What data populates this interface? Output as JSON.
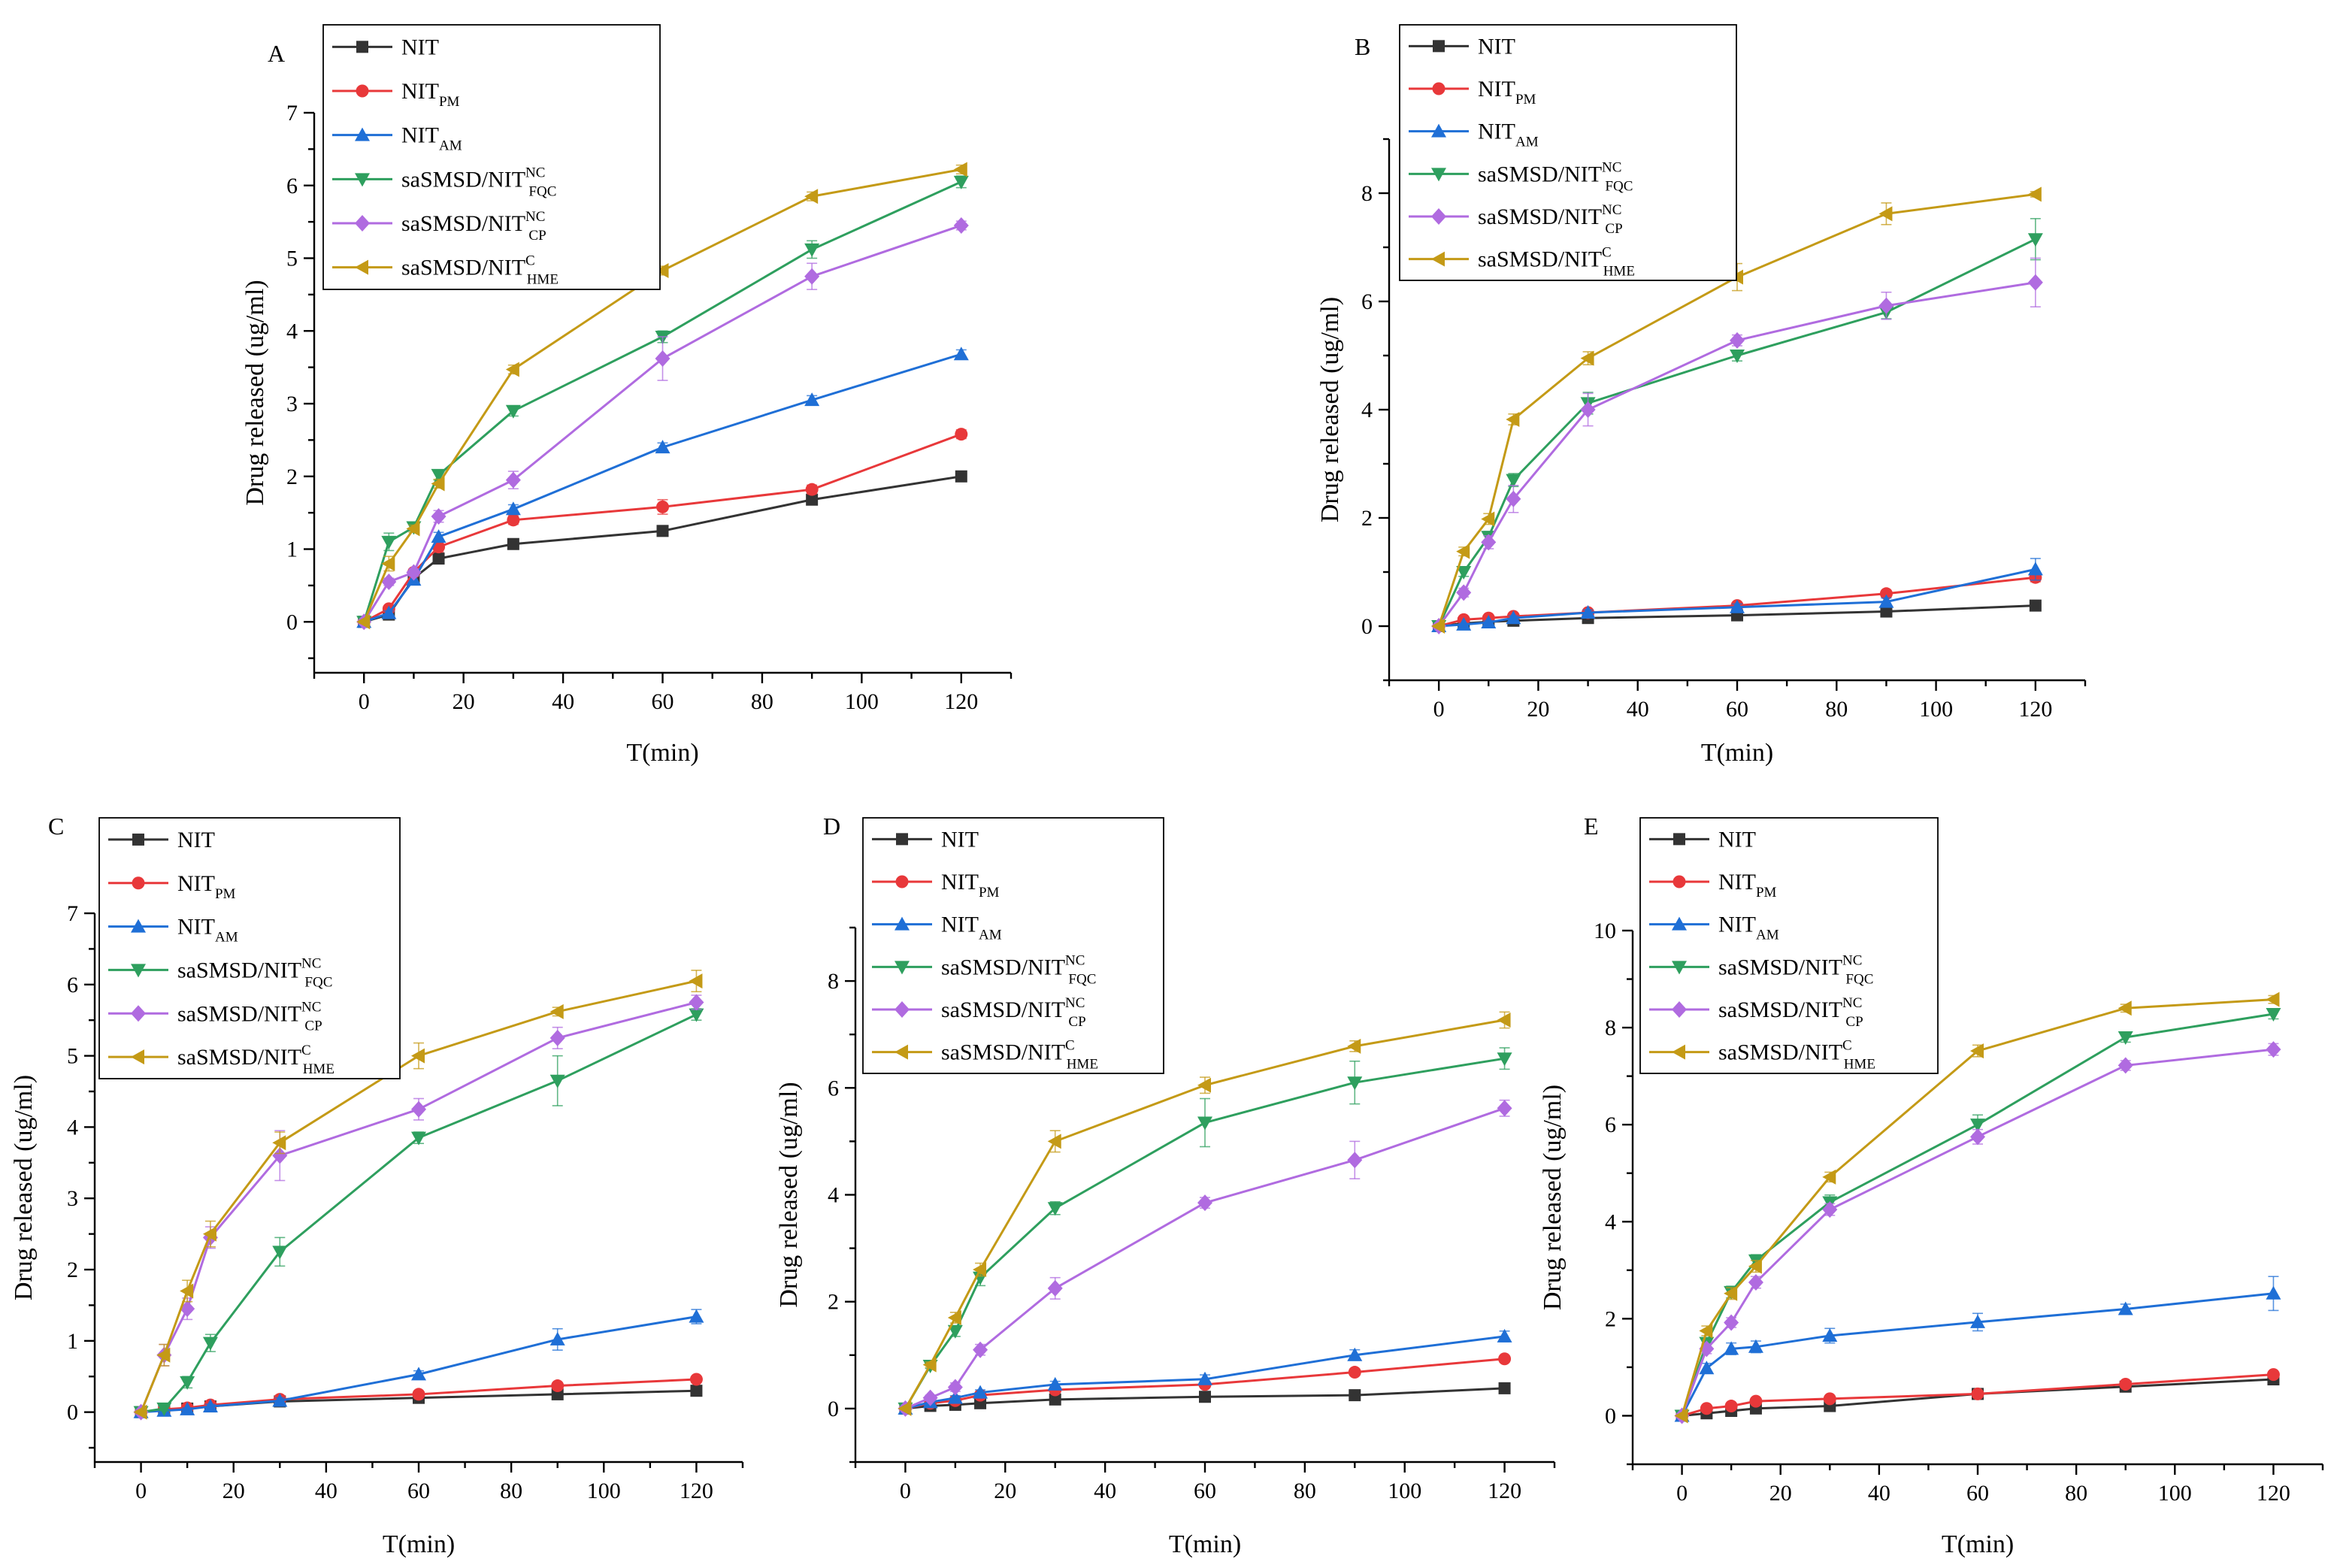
{
  "figure": {
    "title": ""
  },
  "series_style": [
    {
      "name": "NIT",
      "color": "#333333",
      "marker": "square"
    },
    {
      "name": "NIT_PM",
      "color": "#e8383a",
      "marker": "circle"
    },
    {
      "name": "NIT_AM",
      "color": "#1f6fd6",
      "marker": "triangle-up"
    },
    {
      "name": "saSMSD/NIT^NC_FQC",
      "color": "#2e9f5e",
      "marker": "triangle-down"
    },
    {
      "name": "saSMSD/NIT^NC_CP",
      "color": "#b06be0",
      "marker": "diamond"
    },
    {
      "name": "saSMSD/NIT^C_HME",
      "color": "#c49a16",
      "marker": "triangle-left"
    }
  ],
  "legend_entries": [
    {
      "base": "NIT",
      "sup": "",
      "sub": ""
    },
    {
      "base": "NIT",
      "sup": "",
      "sub": "PM"
    },
    {
      "base": "NIT",
      "sup": "",
      "sub": "AM"
    },
    {
      "base": "saSMSD/NIT",
      "sup": "NC",
      "sub": "FQC"
    },
    {
      "base": "saSMSD/NIT",
      "sup": "NC",
      "sub": "CP"
    },
    {
      "base": "saSMSD/NIT",
      "sup": "C",
      "sub": "HME"
    }
  ],
  "chart_data": [
    {
      "panel": "A",
      "type": "line",
      "xlabel": "T(min)",
      "ylabel": "Drug released (ug/ml)",
      "xlim": [
        -10,
        130
      ],
      "ylim": [
        -0.7,
        7
      ],
      "xticks": [
        0,
        20,
        40,
        60,
        80,
        100,
        120
      ],
      "yticks": [
        0,
        1,
        2,
        3,
        4,
        5,
        6,
        7
      ],
      "x": [
        0,
        5,
        10,
        15,
        30,
        60,
        90,
        120
      ],
      "series": [
        {
          "name": "NIT",
          "values": [
            0,
            0.1,
            0.6,
            0.87,
            1.07,
            1.25,
            1.68,
            2.0
          ],
          "err": [
            0.02,
            0.02,
            0.04,
            0.05,
            0.04,
            0.05,
            0.05,
            0.05
          ]
        },
        {
          "name": "NIT_PM",
          "values": [
            0,
            0.18,
            0.68,
            1.03,
            1.4,
            1.58,
            1.82,
            2.58
          ],
          "err": [
            0.02,
            0.03,
            0.05,
            0.07,
            0.06,
            0.1,
            0.06,
            0.06
          ]
        },
        {
          "name": "NIT_AM",
          "values": [
            0,
            0.12,
            0.58,
            1.17,
            1.55,
            2.4,
            3.05,
            3.68
          ],
          "err": [
            0.02,
            0.03,
            0.05,
            0.06,
            0.06,
            0.06,
            0.06,
            0.06
          ]
        },
        {
          "name": "saSMSD/NIT^NC_FQC",
          "values": [
            0,
            1.1,
            1.3,
            2.02,
            2.9,
            3.92,
            5.12,
            6.05
          ],
          "err": [
            0.02,
            0.12,
            0.05,
            0.07,
            0.07,
            0.08,
            0.12,
            0.08
          ]
        },
        {
          "name": "saSMSD/NIT^NC_CP",
          "values": [
            0,
            0.55,
            0.68,
            1.45,
            1.95,
            3.62,
            4.75,
            5.45
          ],
          "err": [
            0.02,
            0.05,
            0.05,
            0.08,
            0.12,
            0.3,
            0.18,
            0.06
          ]
        },
        {
          "name": "saSMSD/NIT^C_HME",
          "values": [
            0,
            0.8,
            1.28,
            1.9,
            3.47,
            4.83,
            5.85,
            6.22
          ],
          "err": [
            0.02,
            0.1,
            0.05,
            0.06,
            0.06,
            0.06,
            0.06,
            0.06
          ]
        }
      ]
    },
    {
      "panel": "B",
      "type": "line",
      "xlabel": "T(min)",
      "ylabel": "Drug released (ug/ml)",
      "xlim": [
        -10,
        130
      ],
      "ylim": [
        -1,
        9
      ],
      "xticks": [
        0,
        20,
        40,
        60,
        80,
        100,
        120
      ],
      "yticks": [
        0,
        2,
        4,
        6,
        8
      ],
      "x": [
        0,
        5,
        10,
        15,
        30,
        60,
        90,
        120
      ],
      "series": [
        {
          "name": "NIT",
          "values": [
            0,
            0.05,
            0.08,
            0.1,
            0.15,
            0.2,
            0.27,
            0.38
          ],
          "err": [
            0.02,
            0.02,
            0.02,
            0.02,
            0.02,
            0.03,
            0.03,
            0.03
          ]
        },
        {
          "name": "NIT_PM",
          "values": [
            0,
            0.12,
            0.15,
            0.18,
            0.25,
            0.38,
            0.6,
            0.9
          ],
          "err": [
            0.02,
            0.03,
            0.03,
            0.03,
            0.04,
            0.04,
            0.06,
            0.08
          ]
        },
        {
          "name": "NIT_AM",
          "values": [
            0,
            0.03,
            0.07,
            0.15,
            0.25,
            0.35,
            0.45,
            1.05
          ],
          "err": [
            0.02,
            0.02,
            0.03,
            0.04,
            0.05,
            0.06,
            0.07,
            0.2
          ]
        },
        {
          "name": "saSMSD/NIT^NC_FQC",
          "values": [
            0,
            1.0,
            1.65,
            2.7,
            4.12,
            5.0,
            5.8,
            7.15
          ],
          "err": [
            0.02,
            0.08,
            0.1,
            0.12,
            0.2,
            0.1,
            0.12,
            0.38
          ]
        },
        {
          "name": "saSMSD/NIT^NC_CP",
          "values": [
            0,
            0.62,
            1.55,
            2.35,
            4.0,
            5.28,
            5.92,
            6.35
          ],
          "err": [
            0.02,
            0.08,
            0.12,
            0.25,
            0.3,
            0.1,
            0.25,
            0.45
          ]
        },
        {
          "name": "saSMSD/NIT^C_HME",
          "values": [
            0,
            1.38,
            1.98,
            3.82,
            4.95,
            6.45,
            7.62,
            7.98
          ],
          "err": [
            0.02,
            0.08,
            0.1,
            0.1,
            0.12,
            0.25,
            0.2,
            0.05
          ]
        }
      ]
    },
    {
      "panel": "C",
      "type": "line",
      "xlabel": "T(min)",
      "ylabel": "Drug released (ug/ml)",
      "xlim": [
        -10,
        130
      ],
      "ylim": [
        -0.7,
        7
      ],
      "xticks": [
        0,
        20,
        40,
        60,
        80,
        100,
        120
      ],
      "yticks": [
        0,
        1,
        2,
        3,
        4,
        5,
        6,
        7
      ],
      "x": [
        0,
        5,
        10,
        15,
        30,
        60,
        90,
        120
      ],
      "series": [
        {
          "name": "NIT",
          "values": [
            0,
            0.03,
            0.05,
            0.08,
            0.15,
            0.2,
            0.25,
            0.3
          ],
          "err": [
            0.02,
            0.02,
            0.02,
            0.02,
            0.02,
            0.02,
            0.02,
            0.03
          ]
        },
        {
          "name": "NIT_PM",
          "values": [
            0,
            0.04,
            0.06,
            0.1,
            0.18,
            0.25,
            0.37,
            0.46
          ],
          "err": [
            0.02,
            0.02,
            0.02,
            0.02,
            0.03,
            0.03,
            0.04,
            0.04
          ]
        },
        {
          "name": "NIT_AM",
          "values": [
            0,
            0.02,
            0.04,
            0.08,
            0.16,
            0.53,
            1.02,
            1.34
          ],
          "err": [
            0.02,
            0.02,
            0.02,
            0.03,
            0.04,
            0.05,
            0.15,
            0.1
          ]
        },
        {
          "name": "saSMSD/NIT^NC_FQC",
          "values": [
            0,
            0.05,
            0.42,
            0.97,
            2.25,
            3.85,
            4.65,
            5.58
          ],
          "err": [
            0.02,
            0.03,
            0.08,
            0.12,
            0.2,
            0.08,
            0.35,
            0.08
          ]
        },
        {
          "name": "saSMSD/NIT^NC_CP",
          "values": [
            0,
            0.8,
            1.45,
            2.45,
            3.6,
            4.25,
            5.25,
            5.75
          ],
          "err": [
            0.02,
            0.15,
            0.15,
            0.15,
            0.35,
            0.15,
            0.15,
            0.1
          ]
        },
        {
          "name": "saSMSD/NIT^C_HME",
          "values": [
            0,
            0.8,
            1.7,
            2.5,
            3.78,
            5.0,
            5.62,
            6.05
          ],
          "err": [
            0.02,
            0.15,
            0.15,
            0.18,
            0.15,
            0.18,
            0.06,
            0.15
          ]
        }
      ]
    },
    {
      "panel": "D",
      "type": "line",
      "xlabel": "T(min)",
      "ylabel": "Drug released (ug/ml)",
      "xlim": [
        -10,
        130
      ],
      "ylim": [
        -1,
        9
      ],
      "xticks": [
        0,
        20,
        40,
        60,
        80,
        100,
        120
      ],
      "yticks": [
        0,
        2,
        4,
        6,
        8
      ],
      "x": [
        0,
        5,
        10,
        15,
        30,
        60,
        90,
        120
      ],
      "series": [
        {
          "name": "NIT",
          "values": [
            0,
            0.05,
            0.07,
            0.1,
            0.17,
            0.22,
            0.25,
            0.38
          ],
          "err": [
            0.02,
            0.02,
            0.02,
            0.02,
            0.03,
            0.03,
            0.03,
            0.03
          ]
        },
        {
          "name": "NIT_PM",
          "values": [
            0,
            0.1,
            0.15,
            0.25,
            0.35,
            0.45,
            0.68,
            0.93
          ],
          "err": [
            0.02,
            0.03,
            0.03,
            0.04,
            0.05,
            0.05,
            0.06,
            0.06
          ]
        },
        {
          "name": "NIT_AM",
          "values": [
            0,
            0.12,
            0.2,
            0.3,
            0.45,
            0.55,
            1.0,
            1.35
          ],
          "err": [
            0.02,
            0.03,
            0.04,
            0.05,
            0.06,
            0.08,
            0.1,
            0.1
          ]
        },
        {
          "name": "saSMSD/NIT^NC_FQC",
          "values": [
            0,
            0.8,
            1.45,
            2.45,
            3.75,
            5.35,
            6.1,
            6.55
          ],
          "err": [
            0.02,
            0.05,
            0.1,
            0.15,
            0.12,
            0.45,
            0.4,
            0.2
          ]
        },
        {
          "name": "saSMSD/NIT^NC_CP",
          "values": [
            0,
            0.2,
            0.4,
            1.1,
            2.25,
            3.85,
            4.65,
            5.62
          ],
          "err": [
            0.02,
            0.05,
            0.08,
            0.1,
            0.2,
            0.1,
            0.35,
            0.15
          ]
        },
        {
          "name": "saSMSD/NIT^C_HME",
          "values": [
            0,
            0.82,
            1.7,
            2.6,
            5.0,
            6.05,
            6.78,
            7.27
          ],
          "err": [
            0.02,
            0.05,
            0.1,
            0.12,
            0.2,
            0.15,
            0.1,
            0.15
          ]
        }
      ]
    },
    {
      "panel": "E",
      "type": "line",
      "xlabel": "T(min)",
      "ylabel": "Drug released (ug/ml)",
      "xlim": [
        -10,
        130
      ],
      "ylim": [
        -1,
        10
      ],
      "xticks": [
        0,
        20,
        40,
        60,
        80,
        100,
        120
      ],
      "yticks": [
        0,
        2,
        4,
        6,
        8,
        10
      ],
      "x": [
        0,
        5,
        10,
        15,
        30,
        60,
        90,
        120
      ],
      "series": [
        {
          "name": "NIT",
          "values": [
            0,
            0.05,
            0.1,
            0.15,
            0.2,
            0.45,
            0.6,
            0.75
          ],
          "err": [
            0.02,
            0.03,
            0.03,
            0.03,
            0.04,
            0.05,
            0.05,
            0.05
          ]
        },
        {
          "name": "NIT_PM",
          "values": [
            0,
            0.15,
            0.2,
            0.3,
            0.35,
            0.45,
            0.65,
            0.85
          ],
          "err": [
            0.02,
            0.04,
            0.04,
            0.05,
            0.05,
            0.05,
            0.05,
            0.06
          ]
        },
        {
          "name": "NIT_AM",
          "values": [
            0,
            0.98,
            1.38,
            1.42,
            1.65,
            1.93,
            2.2,
            2.52
          ],
          "err": [
            0.02,
            0.1,
            0.12,
            0.12,
            0.15,
            0.18,
            0.1,
            0.35
          ]
        },
        {
          "name": "saSMSD/NIT^NC_FQC",
          "values": [
            0,
            1.5,
            2.55,
            3.2,
            4.4,
            6.0,
            7.8,
            8.28
          ],
          "err": [
            0.02,
            0.1,
            0.12,
            0.12,
            0.15,
            0.2,
            0.1,
            0.1
          ]
        },
        {
          "name": "saSMSD/NIT^NC_CP",
          "values": [
            0,
            1.38,
            1.92,
            2.75,
            4.25,
            5.75,
            7.22,
            7.55
          ],
          "err": [
            0.02,
            0.1,
            0.1,
            0.12,
            0.12,
            0.15,
            0.1,
            0.12
          ]
        },
        {
          "name": "saSMSD/NIT^C_HME",
          "values": [
            0,
            1.75,
            2.52,
            3.08,
            4.92,
            7.52,
            8.4,
            8.58
          ],
          "err": [
            0.02,
            0.1,
            0.12,
            0.12,
            0.1,
            0.12,
            0.08,
            0.08
          ]
        }
      ]
    }
  ]
}
